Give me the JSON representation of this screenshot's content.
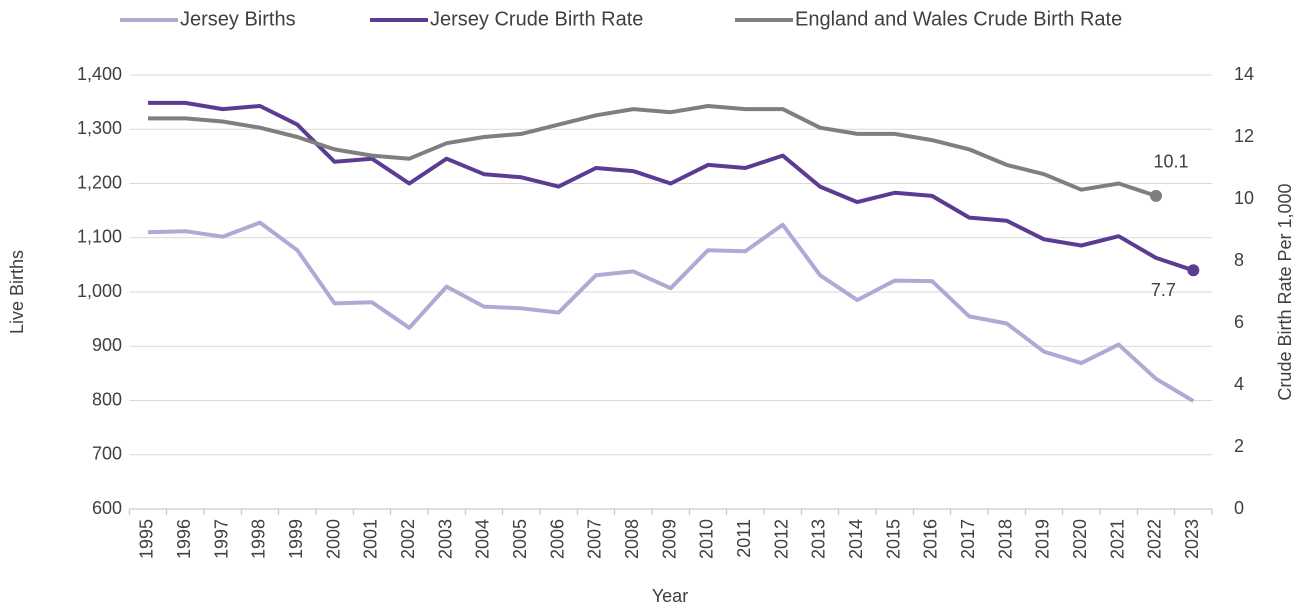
{
  "chart_data": {
    "type": "line",
    "x_label": "Year",
    "y_label": "Live Births",
    "y2_label": "Crude Birth Rate Per 1,000",
    "categories": [
      "1995",
      "1996",
      "1997",
      "1998",
      "1999",
      "2000",
      "2001",
      "2002",
      "2003",
      "2004",
      "2005",
      "2006",
      "2007",
      "2008",
      "2009",
      "2010",
      "2011",
      "2012",
      "2013",
      "2014",
      "2015",
      "2016",
      "2017",
      "2018",
      "2019",
      "2020",
      "2021",
      "2022",
      "2023"
    ],
    "series": [
      {
        "name": "Jersey Births",
        "color": "#b4a7d6",
        "values": [
          1110,
          1112,
          1102,
          1128,
          1077,
          979,
          981,
          934,
          1010,
          973,
          970,
          962,
          1031,
          1038,
          1007,
          1077,
          1075,
          1124,
          1031,
          985,
          1021,
          1020,
          955,
          942,
          890,
          869,
          903,
          840,
          799
        ]
      },
      {
        "name": "Jersey Crude Birth Rate",
        "color": "#5c3c92",
        "axis": "y2",
        "values": [
          13.1,
          13.1,
          12.9,
          13.0,
          12.4,
          11.2,
          11.3,
          10.5,
          11.3,
          10.8,
          10.7,
          10.4,
          11.0,
          10.9,
          10.5,
          11.1,
          11.0,
          11.4,
          10.4,
          9.9,
          10.2,
          10.1,
          9.4,
          9.3,
          8.7,
          8.5,
          8.8,
          8.1,
          7.7
        ],
        "value_labels": [
          null,
          null,
          null,
          null,
          null,
          null,
          null,
          null,
          null,
          null,
          null,
          null,
          null,
          null,
          null,
          null,
          null,
          null,
          null,
          null,
          null,
          null,
          null,
          null,
          null,
          null,
          null,
          null,
          "7.7"
        ]
      },
      {
        "name": "England and Wales Crude Birth Rate",
        "color": "#7f7f7f",
        "axis": "y2",
        "values": [
          12.6,
          12.6,
          12.5,
          12.3,
          12.0,
          11.6,
          11.4,
          11.3,
          11.8,
          12.0,
          12.1,
          12.4,
          12.7,
          12.9,
          12.8,
          13.0,
          12.9,
          12.9,
          12.3,
          12.1,
          12.1,
          11.9,
          11.6,
          11.1,
          10.8,
          10.3,
          10.5,
          10.1,
          null
        ],
        "value_labels": [
          null,
          null,
          null,
          null,
          null,
          null,
          null,
          null,
          null,
          null,
          null,
          null,
          null,
          null,
          null,
          null,
          null,
          null,
          null,
          null,
          null,
          null,
          null,
          null,
          null,
          null,
          null,
          "10.1",
          null
        ]
      }
    ],
    "ylim": [
      600,
      1400
    ],
    "yticks": [
      600,
      700,
      800,
      900,
      {
        "value": 1000,
        "label": "1,000"
      },
      {
        "value": 1100,
        "label": "1,100"
      },
      {
        "value": 1200,
        "label": "1,200"
      },
      {
        "value": 1300,
        "label": "1,300"
      },
      {
        "value": 1400,
        "label": "1,400"
      }
    ],
    "y2lim": [
      0,
      14
    ],
    "y2ticks": [
      0,
      2,
      4,
      6,
      8,
      10,
      12,
      14
    ],
    "grid": true,
    "legend": "top"
  }
}
